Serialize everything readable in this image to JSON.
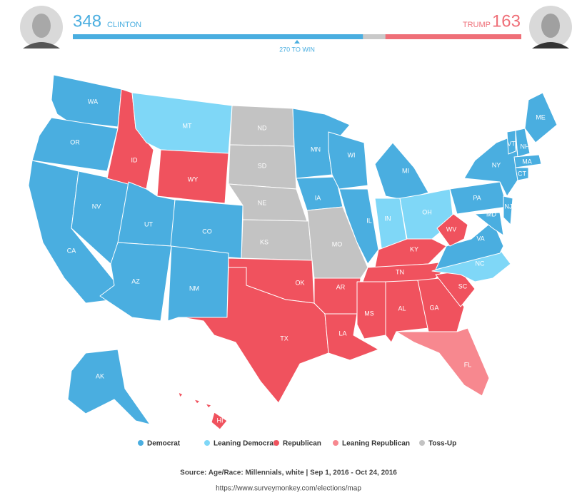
{
  "header": {
    "clinton": {
      "votes": 348,
      "name": "CLINTON",
      "color": "#4aaee0"
    },
    "trump": {
      "votes": 163,
      "name": "TRUMP",
      "color": "#ef6f78"
    },
    "threshold_label": "270 TO WIN"
  },
  "legend": [
    {
      "label": "Democrat",
      "color": "#4aaee0"
    },
    {
      "label": "Leaning Democrat",
      "color": "#7fd7f7"
    },
    {
      "label": "Republican",
      "color": "#f0525e"
    },
    {
      "label": "Leaning Republican",
      "color": "#f7888f"
    },
    {
      "label": "Toss-Up",
      "color": "#c3c3c3"
    }
  ],
  "states": [
    {
      "label": "WA",
      "status": "Democrat"
    },
    {
      "label": "OR",
      "status": "Democrat"
    },
    {
      "label": "CA",
      "status": "Democrat"
    },
    {
      "label": "NV",
      "status": "Democrat"
    },
    {
      "label": "ID",
      "status": "Republican"
    },
    {
      "label": "MT",
      "status": "Leaning Democrat"
    },
    {
      "label": "WY",
      "status": "Republican"
    },
    {
      "label": "UT",
      "status": "Democrat"
    },
    {
      "label": "CO",
      "status": "Democrat"
    },
    {
      "label": "AZ",
      "status": "Democrat"
    },
    {
      "label": "NM",
      "status": "Democrat"
    },
    {
      "label": "ND",
      "status": "Toss-Up"
    },
    {
      "label": "SD",
      "status": "Toss-Up"
    },
    {
      "label": "NE",
      "status": "Toss-Up"
    },
    {
      "label": "KS",
      "status": "Toss-Up"
    },
    {
      "label": "OK",
      "status": "Republican"
    },
    {
      "label": "TX",
      "status": "Republican"
    },
    {
      "label": "MN",
      "status": "Democrat"
    },
    {
      "label": "IA",
      "status": "Democrat"
    },
    {
      "label": "MO",
      "status": "Toss-Up"
    },
    {
      "label": "AR",
      "status": "Republican"
    },
    {
      "label": "LA",
      "status": "Republican"
    },
    {
      "label": "WI",
      "status": "Democrat"
    },
    {
      "label": "IL",
      "status": "Democrat"
    },
    {
      "label": "MI",
      "status": "Democrat"
    },
    {
      "label": "IN",
      "status": "Leaning Democrat"
    },
    {
      "label": "OH",
      "status": "Leaning Democrat"
    },
    {
      "label": "KY",
      "status": "Republican"
    },
    {
      "label": "TN",
      "status": "Republican"
    },
    {
      "label": "MS",
      "status": "Republican"
    },
    {
      "label": "AL",
      "status": "Republican"
    },
    {
      "label": "GA",
      "status": "Republican"
    },
    {
      "label": "FL",
      "status": "Leaning Republican"
    },
    {
      "label": "SC",
      "status": "Republican"
    },
    {
      "label": "NC",
      "status": "Leaning Democrat"
    },
    {
      "label": "VA",
      "status": "Democrat"
    },
    {
      "label": "WV",
      "status": "Republican"
    },
    {
      "label": "PA",
      "status": "Democrat"
    },
    {
      "label": "NY",
      "status": "Democrat"
    },
    {
      "label": "VT",
      "status": "Democrat"
    },
    {
      "label": "NH",
      "status": "Democrat"
    },
    {
      "label": "ME",
      "status": "Democrat"
    },
    {
      "label": "MA",
      "status": "Democrat"
    },
    {
      "label": "CT",
      "status": "Democrat"
    },
    {
      "label": "NJ",
      "status": "Democrat"
    },
    {
      "label": "MD",
      "status": "Democrat"
    },
    {
      "label": "AK",
      "status": "Democrat"
    },
    {
      "label": "HI",
      "status": "Republican"
    }
  ],
  "source": "Source: Age/Race: Millennials, white | Sep 1, 2016 - Oct 24, 2016",
  "url": "https://www.surveymonkey.com/elections/map"
}
